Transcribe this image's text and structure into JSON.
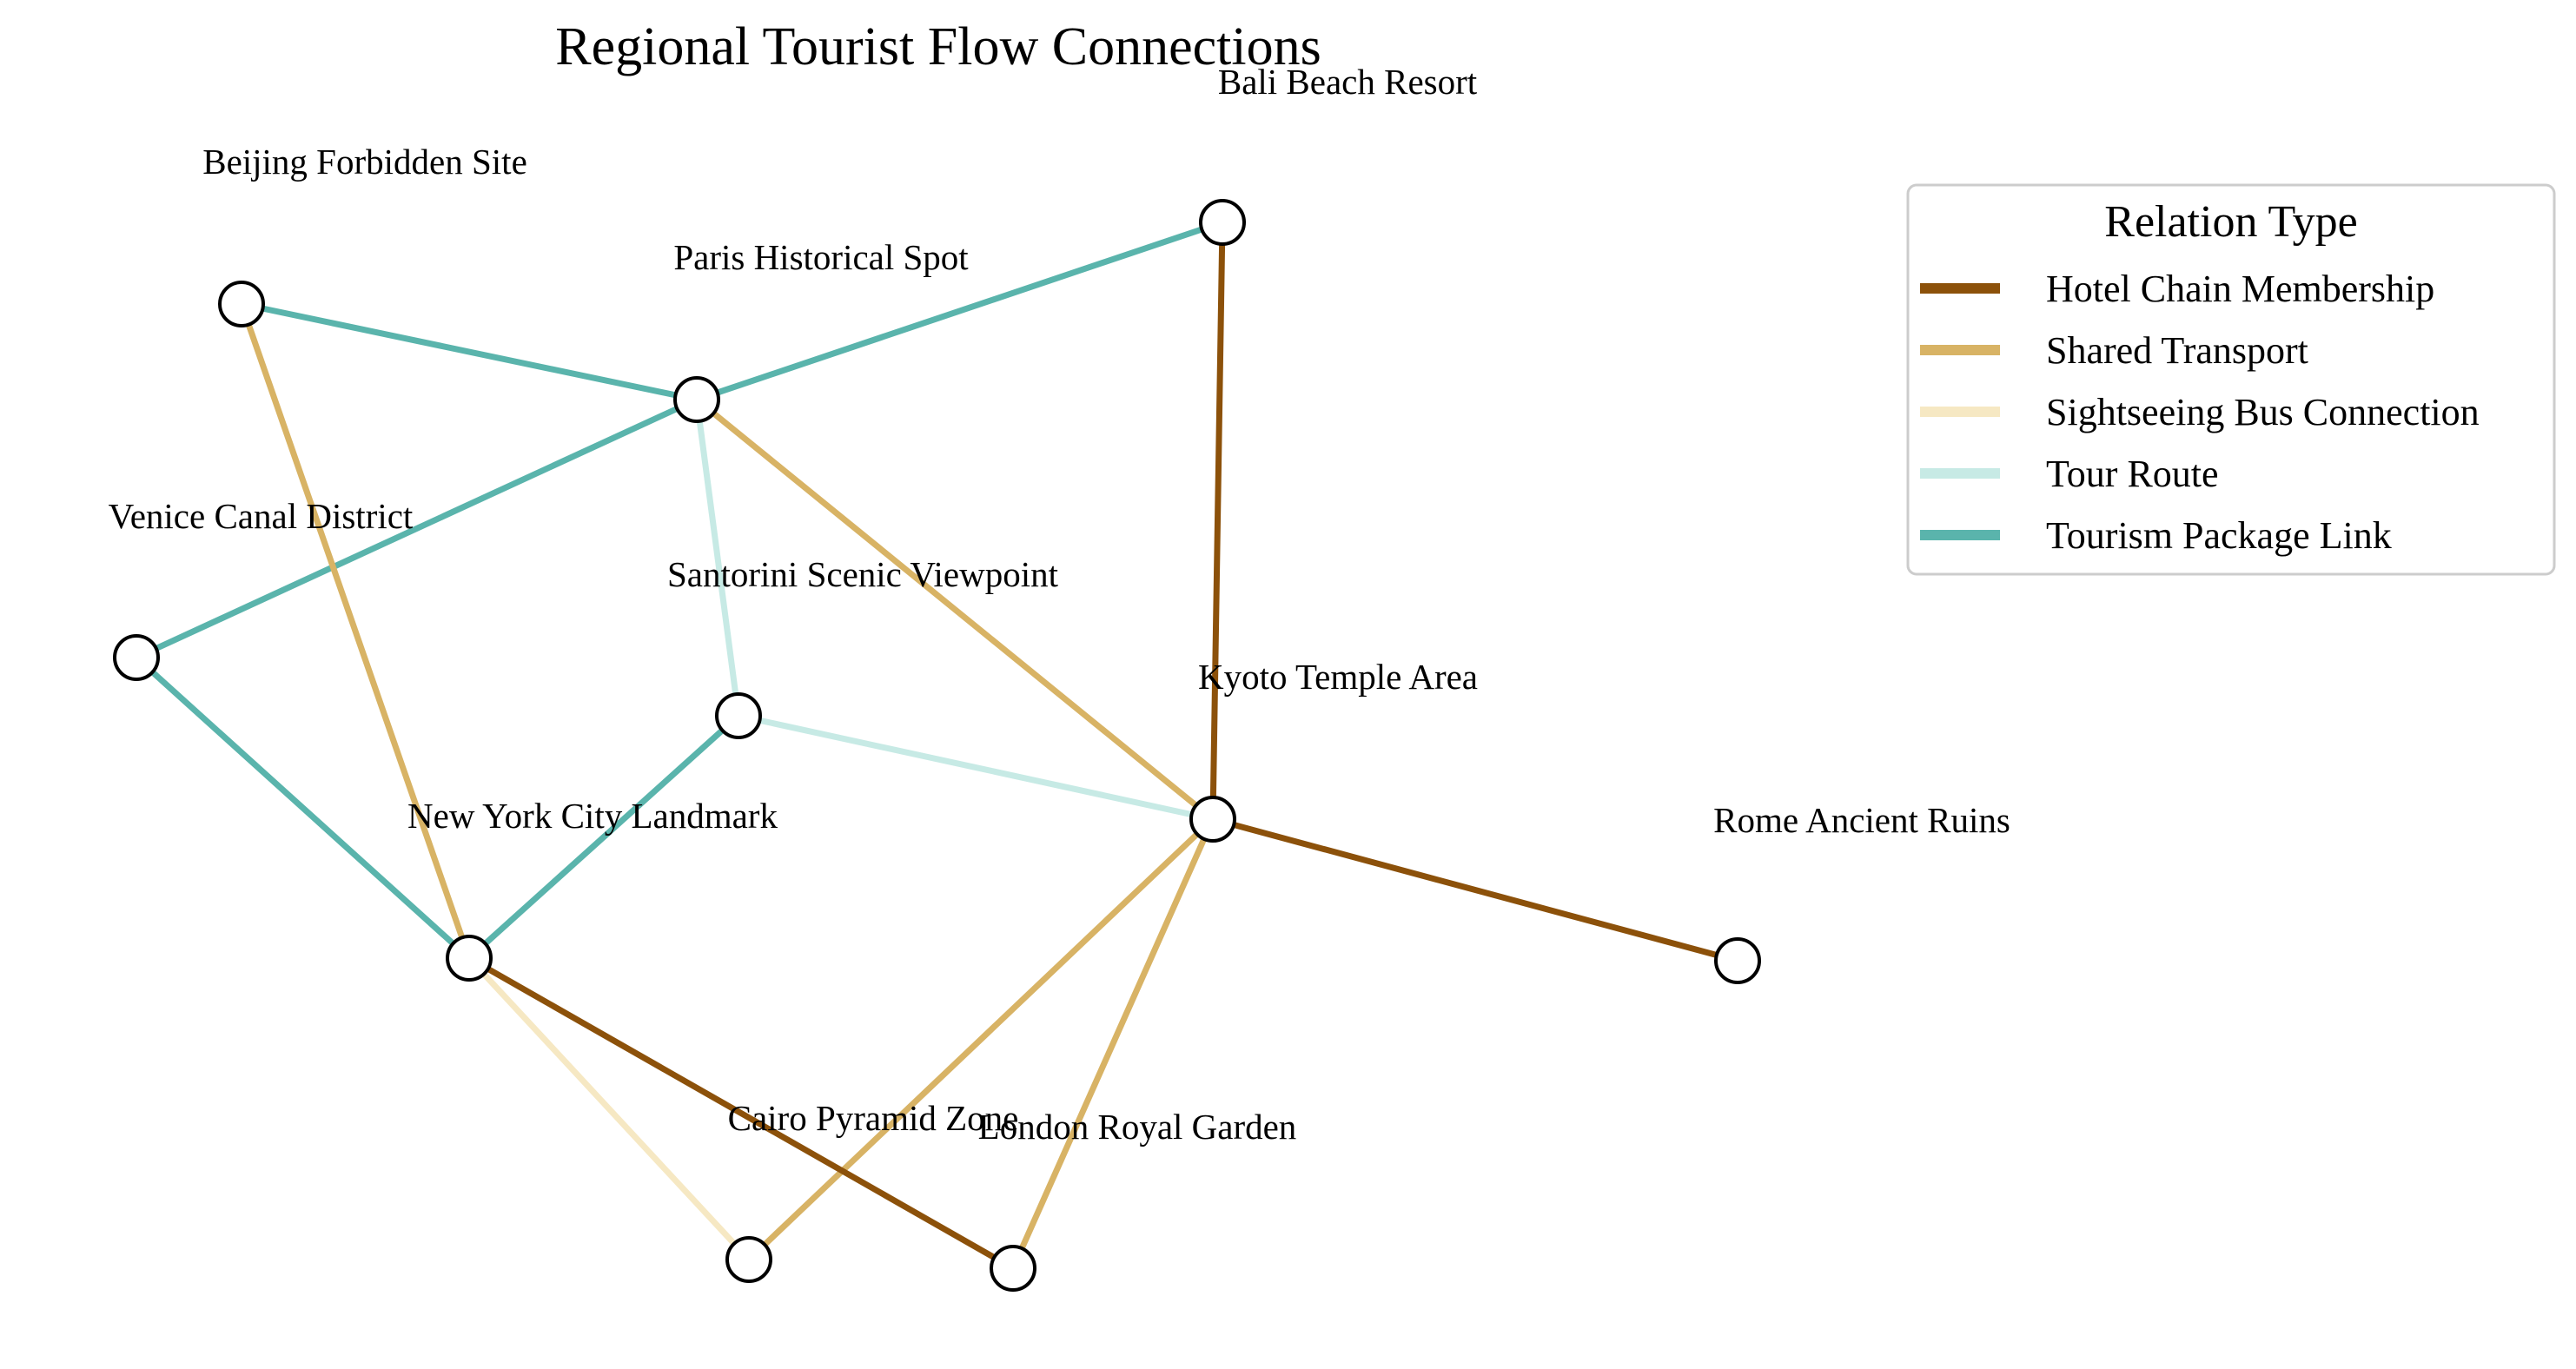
{
  "title": "Regional Tourist Flow Connections",
  "relation_types": [
    {
      "name": "Hotel Chain Membership",
      "color": "#8c510a"
    },
    {
      "name": "Shared Transport",
      "color": "#d8b365"
    },
    {
      "name": "Sightseeing Bus Connection",
      "color": "#f6e8c3"
    },
    {
      "name": "Tour Route",
      "color": "#c7eae5"
    },
    {
      "name": "Tourism Package Link",
      "color": "#5ab4ac"
    }
  ],
  "legend": {
    "title": "Relation Type",
    "placement": "upper-right"
  },
  "nodes": [
    {
      "id": "bali",
      "label": "Bali Beach Resort"
    },
    {
      "id": "beijing",
      "label": "Beijing Forbidden Site"
    },
    {
      "id": "paris",
      "label": "Paris Historical Spot"
    },
    {
      "id": "venice",
      "label": "Venice Canal District"
    },
    {
      "id": "santorini",
      "label": "Santorini Scenic Viewpoint"
    },
    {
      "id": "kyoto",
      "label": "Kyoto Temple Area"
    },
    {
      "id": "newyork",
      "label": "New York City Landmark"
    },
    {
      "id": "rome",
      "label": "Rome Ancient Ruins"
    },
    {
      "id": "cairo",
      "label": "Cairo Pyramid Zone"
    },
    {
      "id": "london",
      "label": "London Royal Garden"
    }
  ],
  "edges": [
    {
      "source": "beijing",
      "target": "paris",
      "type": "Tourism Package Link"
    },
    {
      "source": "paris",
      "target": "bali",
      "type": "Tourism Package Link"
    },
    {
      "source": "paris",
      "target": "venice",
      "type": "Tourism Package Link"
    },
    {
      "source": "venice",
      "target": "newyork",
      "type": "Tourism Package Link"
    },
    {
      "source": "newyork",
      "target": "santorini",
      "type": "Tourism Package Link"
    },
    {
      "source": "paris",
      "target": "santorini",
      "type": "Tour Route"
    },
    {
      "source": "santorini",
      "target": "kyoto",
      "type": "Tour Route"
    },
    {
      "source": "beijing",
      "target": "newyork",
      "type": "Shared Transport"
    },
    {
      "source": "paris",
      "target": "kyoto",
      "type": "Shared Transport"
    },
    {
      "source": "kyoto",
      "target": "cairo",
      "type": "Shared Transport"
    },
    {
      "source": "kyoto",
      "target": "london",
      "type": "Shared Transport"
    },
    {
      "source": "bali",
      "target": "kyoto",
      "type": "Hotel Chain Membership"
    },
    {
      "source": "kyoto",
      "target": "rome",
      "type": "Hotel Chain Membership"
    },
    {
      "source": "newyork",
      "target": "london",
      "type": "Hotel Chain Membership"
    },
    {
      "source": "newyork",
      "target": "cairo",
      "type": "Sightseeing Bus Connection"
    }
  ]
}
